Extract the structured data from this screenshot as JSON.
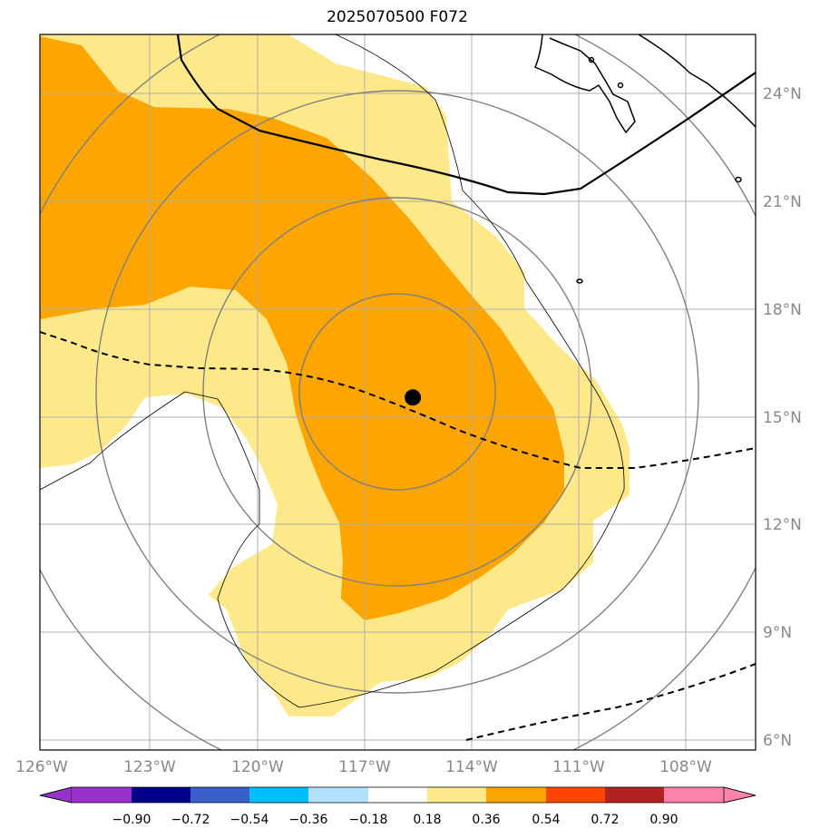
{
  "title": "2025070500 F072",
  "map": {
    "lon_range": [
      -126,
      -107
    ],
    "lat_range": [
      5.7,
      26
    ],
    "lon_ticks": [
      {
        "value": -126,
        "label": "126°W"
      },
      {
        "value": -123,
        "label": "123°W"
      },
      {
        "value": -120,
        "label": "120°W"
      },
      {
        "value": -117,
        "label": "117°W"
      },
      {
        "value": -114,
        "label": "114°W"
      },
      {
        "value": -111,
        "label": "111°W"
      },
      {
        "value": -108,
        "label": "108°W"
      }
    ],
    "lat_ticks": [
      {
        "value": 24,
        "label": "24°N"
      },
      {
        "value": 21,
        "label": "21°N"
      },
      {
        "value": 18,
        "label": "18°N"
      },
      {
        "value": 15,
        "label": "15°N"
      },
      {
        "value": 12,
        "label": "12°N"
      },
      {
        "value": 9,
        "label": "9°N"
      },
      {
        "value": 6,
        "label": "6°N"
      }
    ],
    "center_marker": {
      "lon": -116.1,
      "lat": 15.7
    },
    "shading_colors": {
      "low": "#fee98a",
      "mid": "#ffa500"
    }
  },
  "colorbar": {
    "ticks": [
      "−0.90",
      "−0.72",
      "−0.54",
      "−0.36",
      "−0.18",
      "0.18",
      "0.36",
      "0.54",
      "0.72",
      "0.90"
    ],
    "colors": [
      "#9932cc",
      "#00008b",
      "#3a5fcd",
      "#00bfff",
      "#b0e2ff",
      "#ffffff",
      "#fee98a",
      "#ffa500",
      "#ff4500",
      "#b22222",
      "#ff82ab"
    ]
  }
}
